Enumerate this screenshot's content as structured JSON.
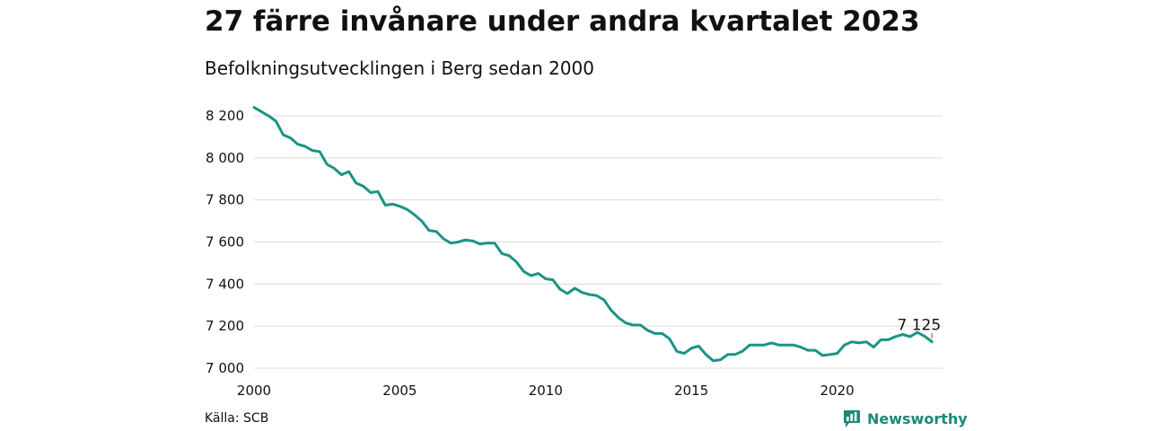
{
  "header": {
    "title": "27 färre invånare under andra kvartalet 2023",
    "subtitle": "Befolkningsutvecklingen i Berg sedan 2000"
  },
  "footer": {
    "source": "Källa: SCB",
    "brand": "Newsworthy",
    "brand_icon": "bar-chart-icon",
    "brand_color": "#1a8a7a"
  },
  "chart_data": {
    "type": "line",
    "title": "27 färre invånare under andra kvartalet 2023",
    "subtitle": "Befolkningsutvecklingen i Berg sedan 2000",
    "xlabel": "",
    "ylabel": "",
    "xlim": [
      2000,
      2023.5
    ],
    "ylim": [
      7000,
      8250
    ],
    "x_ticks": [
      2000,
      2005,
      2010,
      2015,
      2020
    ],
    "x_tick_labels": [
      "2000",
      "2005",
      "2010",
      "2015",
      "2020"
    ],
    "y_ticks": [
      7000,
      7200,
      7400,
      7600,
      7800,
      8000,
      8200
    ],
    "y_tick_labels": [
      "7 000",
      "7 200",
      "7 400",
      "7 600",
      "7 800",
      "8 000",
      "8 200"
    ],
    "grid": true,
    "line_color": "#1a9485",
    "annotation": {
      "label": "7 125",
      "x": 2023.25,
      "y": 7125
    },
    "series": [
      {
        "x": [
          2000.0,
          2000.25,
          2000.5,
          2000.75,
          2001.0,
          2001.25,
          2001.5,
          2001.75,
          2002.0,
          2002.25,
          2002.5,
          2002.75,
          2003.0,
          2003.25,
          2003.5,
          2003.75,
          2004.0,
          2004.25,
          2004.5,
          2004.75,
          2005.0,
          2005.25,
          2005.5,
          2005.75,
          2006.0,
          2006.25,
          2006.5,
          2006.75,
          2007.0,
          2007.25,
          2007.5,
          2007.75,
          2008.0,
          2008.25,
          2008.5,
          2008.75,
          2009.0,
          2009.25,
          2009.5,
          2009.75,
          2010.0,
          2010.25,
          2010.5,
          2010.75,
          2011.0,
          2011.25,
          2011.5,
          2011.75,
          2012.0,
          2012.25,
          2012.5,
          2012.75,
          2013.0,
          2013.25,
          2013.5,
          2013.75,
          2014.0,
          2014.25,
          2014.5,
          2014.75,
          2015.0,
          2015.25,
          2015.5,
          2015.75,
          2016.0,
          2016.25,
          2016.5,
          2016.75,
          2017.0,
          2017.25,
          2017.5,
          2017.75,
          2018.0,
          2018.25,
          2018.5,
          2018.75,
          2019.0,
          2019.25,
          2019.5,
          2019.75,
          2020.0,
          2020.25,
          2020.5,
          2020.75,
          2021.0,
          2021.25,
          2021.5,
          2021.75,
          2022.0,
          2022.25,
          2022.5,
          2022.75,
          2023.0,
          2023.25
        ],
        "y": [
          8240,
          8220,
          8200,
          8175,
          8110,
          8095,
          8065,
          8055,
          8035,
          8030,
          7970,
          7950,
          7920,
          7935,
          7880,
          7865,
          7835,
          7840,
          7775,
          7780,
          7770,
          7755,
          7730,
          7700,
          7655,
          7650,
          7615,
          7595,
          7600,
          7610,
          7605,
          7590,
          7595,
          7595,
          7545,
          7535,
          7505,
          7460,
          7440,
          7450,
          7425,
          7420,
          7375,
          7355,
          7380,
          7360,
          7350,
          7345,
          7325,
          7275,
          7240,
          7215,
          7205,
          7205,
          7180,
          7165,
          7165,
          7140,
          7080,
          7070,
          7095,
          7105,
          7065,
          7035,
          7040,
          7065,
          7065,
          7080,
          7110,
          7110,
          7110,
          7120,
          7110,
          7110,
          7110,
          7100,
          7085,
          7085,
          7060,
          7065,
          7070,
          7110,
          7125,
          7120,
          7125,
          7100,
          7135,
          7135,
          7150,
          7160,
          7150,
          7170,
          7152,
          7125
        ]
      }
    ]
  }
}
